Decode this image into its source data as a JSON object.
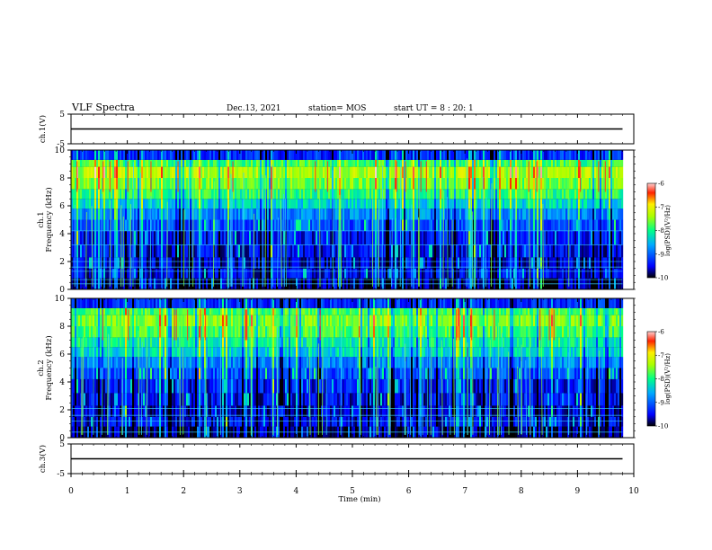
{
  "header": {
    "title": "VLF Spectra",
    "date": "Dec.13, 2021",
    "station": "station= MOS",
    "start": "start  UT =   8 : 20: 1"
  },
  "chart_data": [
    {
      "type": "line",
      "panel": "ch1-voltage",
      "ylabel": "ch.1(V)",
      "ylim": [
        -5,
        5
      ],
      "yticks": [
        "5",
        "-5"
      ],
      "x": [
        0,
        9.8
      ],
      "values": [
        0,
        0
      ],
      "xlim": [
        0,
        10
      ]
    },
    {
      "type": "heatmap",
      "panel": "ch1-spectrogram",
      "ylabel": "ch.1\nFrequency (kHz)",
      "ylim": [
        0,
        10
      ],
      "yticks": [
        "0",
        "2",
        "4",
        "6",
        "8",
        "10"
      ],
      "xlim": [
        0,
        10
      ],
      "data_extent_min": 9.8,
      "colorbar": {
        "label": "log(PSD)(V²/Hz)",
        "ticks": [
          "-6",
          "-7",
          "-8",
          "-9",
          "-10"
        ],
        "range": [
          -10,
          -6
        ]
      }
    },
    {
      "type": "heatmap",
      "panel": "ch2-spectrogram",
      "ylabel": "ch.2\nFrequency (kHz)",
      "ylim": [
        0,
        10
      ],
      "yticks": [
        "0",
        "2",
        "4",
        "6",
        "8",
        "10"
      ],
      "xlim": [
        0,
        10
      ],
      "data_extent_min": 9.8,
      "colorbar": {
        "label": "log(PSD)(V²/Hz)",
        "ticks": [
          "-6",
          "-7",
          "-8",
          "-9",
          "-10"
        ],
        "range": [
          -10,
          -6
        ]
      }
    },
    {
      "type": "line",
      "panel": "ch3-voltage",
      "ylabel": "ch.3(V)",
      "ylim": [
        -5,
        5
      ],
      "yticks": [
        "5",
        "-5"
      ],
      "x": [
        0,
        9.8
      ],
      "values": [
        0,
        0
      ],
      "xlim": [
        0,
        10
      ]
    }
  ],
  "xaxis": {
    "label": "Time (min)",
    "ticks": [
      "0",
      "1",
      "2",
      "3",
      "4",
      "5",
      "6",
      "7",
      "8",
      "9",
      "10"
    ]
  }
}
